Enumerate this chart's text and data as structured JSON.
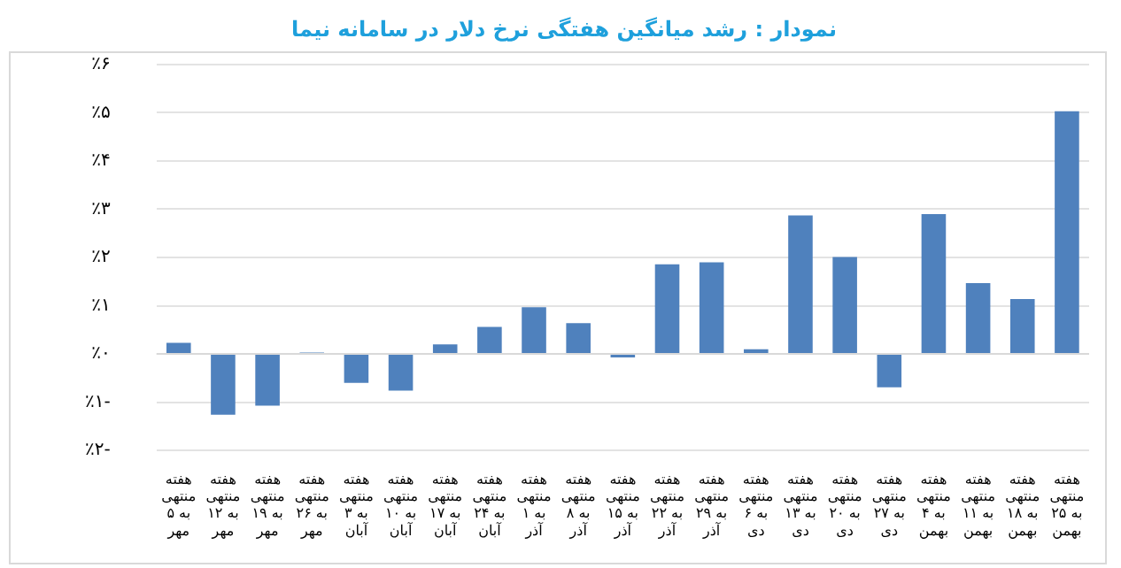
{
  "chart_data": {
    "type": "bar",
    "title": "نمودار : رشد میانگین هفتگی نرخ دلار در سامانه نیما",
    "categories": [
      "هفته منتهی به ۵ مهر",
      "هفته منتهی به ۱۲ مهر",
      "هفته منتهی به ۱۹ مهر",
      "هفته منتهی به ۲۶ مهر",
      "هفته منتهی به ۳ آبان",
      "هفته منتهی به ۱۰ آبان",
      "هفته منتهی به ۱۷ آبان",
      "هفته منتهی به ۲۴ آبان",
      "هفته منتهی به ۱ آذر",
      "هفته منتهی به ۸ آذر",
      "هفته منتهی به ۱۵ آذر",
      "هفته منتهی به ۲۲ آذر",
      "هفته منتهی به ۲۹ آذر",
      "هفته منتهی به ۶ دی",
      "هفته منتهی به ۱۳ دی",
      "هفته منتهی به ۲۰ دی",
      "هفته منتهی به ۲۷ دی",
      "هفته منتهی به ۴ بهمن",
      "هفته منتهی به ۱۱ بهمن",
      "هفته منتهی به ۱۸ بهمن",
      "هفته منتهی به ۲۵ بهمن"
    ],
    "values": [
      0.23,
      -1.26,
      -1.07,
      0.03,
      -0.6,
      -0.76,
      0.2,
      0.56,
      0.97,
      0.64,
      -0.07,
      1.86,
      1.9,
      0.1,
      2.87,
      2.01,
      -0.69,
      2.9,
      1.47,
      1.14,
      5.03
    ],
    "color": "#4f81bd",
    "ylim": [
      -2,
      6
    ],
    "yticks": [
      {
        "value": -2,
        "label": "٪۲-"
      },
      {
        "value": -1,
        "label": "٪۱-"
      },
      {
        "value": 0,
        "label": "٪۰"
      },
      {
        "value": 1,
        "label": "٪۱"
      },
      {
        "value": 2,
        "label": "٪۲"
      },
      {
        "value": 3,
        "label": "٪۳"
      },
      {
        "value": 4,
        "label": "٪۴"
      },
      {
        "value": 5,
        "label": "٪۵"
      },
      {
        "value": 6,
        "label": "٪۶"
      }
    ],
    "grid": "y",
    "legend": false
  }
}
